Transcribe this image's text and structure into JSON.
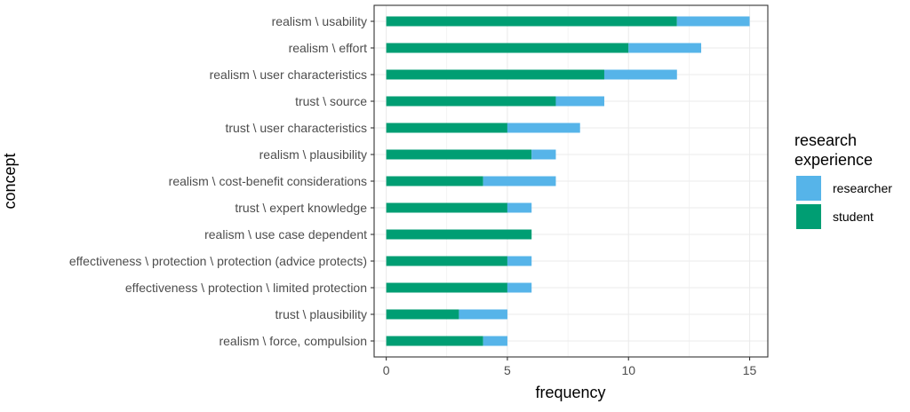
{
  "chart_data": {
    "type": "bar",
    "orientation": "horizontal",
    "stacked": true,
    "xlabel": "frequency",
    "ylabel": "concept",
    "xlim": [
      -0.5,
      15.75
    ],
    "x_ticks": [
      0,
      5,
      10,
      15
    ],
    "grid": true,
    "legend_position": "right",
    "legend_title": [
      "research",
      "experience"
    ],
    "categories": [
      "realism \\ usability",
      "realism \\ effort",
      "realism \\ user characteristics",
      "trust \\ source",
      "trust \\ user characteristics",
      "realism \\ plausibility",
      "realism \\ cost-benefit considerations",
      "trust \\ expert knowledge",
      "realism \\ use case dependent",
      "effectiveness \\ protection \\ protection (advice protects)",
      "effectiveness \\ protection \\ limited protection",
      "trust \\ plausibility",
      "realism \\ force, compulsion"
    ],
    "series": [
      {
        "name": "student",
        "color": "#009E73",
        "values": [
          12,
          10,
          9,
          7,
          5,
          6,
          4,
          5,
          6,
          5,
          5,
          3,
          4
        ]
      },
      {
        "name": "researcher",
        "color": "#56B4E9",
        "values": [
          3,
          3,
          3,
          2,
          3,
          1,
          3,
          1,
          0,
          1,
          1,
          2,
          1
        ]
      }
    ],
    "legend_order": [
      "researcher",
      "student"
    ]
  }
}
